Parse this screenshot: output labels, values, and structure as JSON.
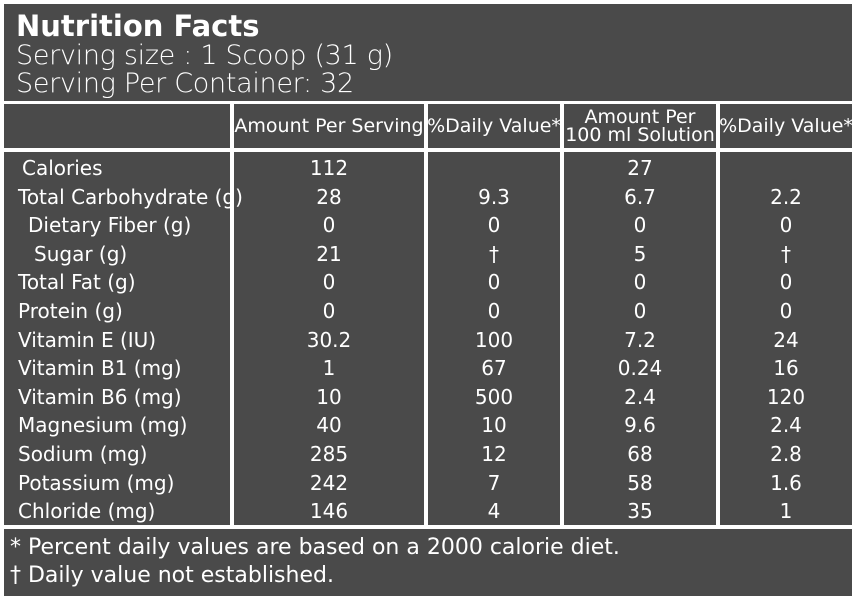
{
  "title": "Nutrition Facts",
  "serving_size": "Serving size : 1 Scoop (31 g)",
  "servings_per_container": "Serving Per Container: 32",
  "headers": {
    "amount_per_serving": "Amount Per Serving",
    "daily_value_1": "%Daily Value*",
    "amount_per_100ml_line1": "Amount Per",
    "amount_per_100ml_line2": "100 ml Solution",
    "daily_value_2": "%Daily Value*"
  },
  "rows": [
    {
      "nutrient": "Calories",
      "per_serving": "112",
      "dv": "",
      "per_100ml": "27",
      "dv_100ml": ""
    },
    {
      "nutrient": "Total Carbohydrate (g)",
      "per_serving": "28",
      "dv": "9.3",
      "per_100ml": "6.7",
      "dv_100ml": "2.2"
    },
    {
      "nutrient": "Dietary Fiber (g)",
      "per_serving": "0",
      "dv": "0",
      "per_100ml": "0",
      "dv_100ml": "0"
    },
    {
      "nutrient": "Sugar (g)",
      "per_serving": "21",
      "dv": "†",
      "per_100ml": "5",
      "dv_100ml": "†"
    },
    {
      "nutrient": "Total Fat (g)",
      "per_serving": "0",
      "dv": "0",
      "per_100ml": "0",
      "dv_100ml": "0"
    },
    {
      "nutrient": "Protein (g)",
      "per_serving": "0",
      "dv": "0",
      "per_100ml": "0",
      "dv_100ml": "0"
    },
    {
      "nutrient": "Vitamin E (IU)",
      "per_serving": "30.2",
      "dv": "100",
      "per_100ml": "7.2",
      "dv_100ml": "24"
    },
    {
      "nutrient": "Vitamin B1 (mg)",
      "per_serving": "1",
      "dv": "67",
      "per_100ml": "0.24",
      "dv_100ml": "16"
    },
    {
      "nutrient": "Vitamin B6 (mg)",
      "per_serving": "10",
      "dv": "500",
      "per_100ml": "2.4",
      "dv_100ml": "120"
    },
    {
      "nutrient": "Magnesium (mg)",
      "per_serving": "40",
      "dv": "10",
      "per_100ml": "9.6",
      "dv_100ml": "2.4"
    },
    {
      "nutrient": "Sodium (mg)",
      "per_serving": "285",
      "dv": "12",
      "per_100ml": "68",
      "dv_100ml": "2.8"
    },
    {
      "nutrient": "Potassium (mg)",
      "per_serving": "242",
      "dv": "7",
      "per_100ml": "58",
      "dv_100ml": "1.6"
    },
    {
      "nutrient": "Chloride (mg)",
      "per_serving": "146",
      "dv": "4",
      "per_100ml": "35",
      "dv_100ml": "1"
    }
  ],
  "footnotes": {
    "percent_note": "* Percent daily values are based on a 2000 calorie diet.",
    "dagger_note": "† Daily value not established."
  }
}
